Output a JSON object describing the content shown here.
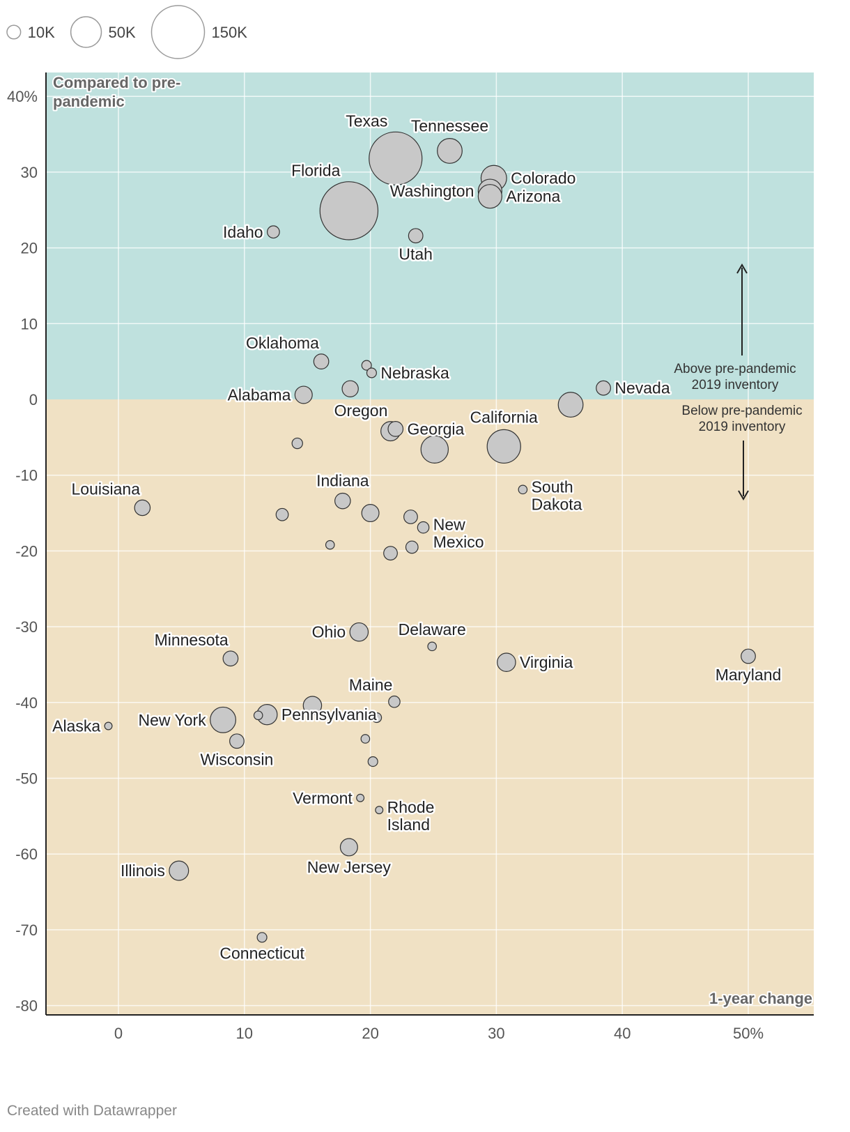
{
  "legend": {
    "items": [
      {
        "label": "10K",
        "value": 10000
      },
      {
        "label": "50K",
        "value": 50000
      },
      {
        "label": "150K",
        "value": 150000
      }
    ]
  },
  "annotations": {
    "y_corner": "Compared to pre-pandemic",
    "x_corner": "1-year change",
    "above": [
      "Above pre-pandemic",
      "2019 inventory"
    ],
    "below": [
      "Below pre-pandemic",
      "2019 inventory"
    ]
  },
  "colors": {
    "above_zone": "#bfe1de",
    "below_zone": "#f0e1c4",
    "bubble_fill": "#c8c8c8",
    "bubble_stroke": "#333333"
  },
  "credit": "Created with Datawrapper",
  "chart_data": {
    "type": "scatter",
    "title": "",
    "xlabel": "1-year change",
    "ylabel": "Compared to pre-pandemic",
    "xlim": [
      -6,
      55
    ],
    "ylim": [
      -81,
      43
    ],
    "x_ticks": [
      {
        "v": 0,
        "t": "0"
      },
      {
        "v": 10,
        "t": "10"
      },
      {
        "v": 20,
        "t": "20"
      },
      {
        "v": 30,
        "t": "30"
      },
      {
        "v": 40,
        "t": "40"
      },
      {
        "v": 50,
        "t": "50%"
      }
    ],
    "y_ticks": [
      {
        "v": 40,
        "t": "40%"
      },
      {
        "v": 30,
        "t": "30"
      },
      {
        "v": 20,
        "t": "20"
      },
      {
        "v": 10,
        "t": "10"
      },
      {
        "v": 0,
        "t": "0"
      },
      {
        "v": -10,
        "t": "-10"
      },
      {
        "v": -20,
        "t": "-20"
      },
      {
        "v": -30,
        "t": "-30"
      },
      {
        "v": -40,
        "t": "-40"
      },
      {
        "v": -50,
        "t": "-50"
      },
      {
        "v": -60,
        "t": "-60"
      },
      {
        "v": -70,
        "t": "-70"
      },
      {
        "v": -80,
        "t": "-80"
      }
    ],
    "grid": true,
    "size_legend_placement": "top-left",
    "points": [
      {
        "name": "Texas",
        "x": 22,
        "y": 31.8,
        "size": 150000,
        "label_pos": "tl"
      },
      {
        "name": "Tennessee",
        "x": 26.3,
        "y": 32.8,
        "size": 33000,
        "label_pos": "t"
      },
      {
        "name": "Florida",
        "x": 18.3,
        "y": 24.9,
        "size": 180000,
        "label_pos": "tl"
      },
      {
        "name": "Colorado",
        "x": 29.8,
        "y": 29.2,
        "size": 35000,
        "label_pos": "r"
      },
      {
        "name": "Washington",
        "x": 29.5,
        "y": 27.5,
        "size": 30000,
        "label_pos": "l"
      },
      {
        "name": "Arizona",
        "x": 29.5,
        "y": 26.8,
        "size": 30000,
        "label_pos": "r"
      },
      {
        "name": "Idaho",
        "x": 12.3,
        "y": 22.1,
        "size": 8000,
        "label_pos": "l"
      },
      {
        "name": "Utah",
        "x": 23.6,
        "y": 21.6,
        "size": 11000,
        "label_pos": "b"
      },
      {
        "name": "Oklahoma",
        "x": 16.1,
        "y": 5,
        "size": 12000,
        "label_pos": "tl"
      },
      {
        "name": "",
        "x": 19.7,
        "y": 4.5,
        "size": 5000,
        "label_pos": "none"
      },
      {
        "name": "Nebraska",
        "x": 20.1,
        "y": 3.5,
        "size": 5000,
        "label_pos": "r"
      },
      {
        "name": "",
        "x": 18.4,
        "y": 1.4,
        "size": 14000,
        "label_pos": "none"
      },
      {
        "name": "Alabama",
        "x": 14.7,
        "y": 0.6,
        "size": 16000,
        "label_pos": "l"
      },
      {
        "name": "Nevada",
        "x": 38.5,
        "y": 1.5,
        "size": 11000,
        "label_pos": "r"
      },
      {
        "name": "",
        "x": 35.9,
        "y": -0.7,
        "size": 33000,
        "label_pos": "none"
      },
      {
        "name": "Oregon",
        "x": 21.6,
        "y": -4.2,
        "size": 20000,
        "label_pos": "tl"
      },
      {
        "name": "Georgia",
        "x": 22,
        "y": -3.9,
        "size": 12000,
        "label_pos": "r"
      },
      {
        "name": "California",
        "x": 30.6,
        "y": -6.2,
        "size": 60000,
        "label_pos": "t"
      },
      {
        "name": "",
        "x": 25.1,
        "y": -6.6,
        "size": 40000,
        "label_pos": "none"
      },
      {
        "name": "",
        "x": 14.2,
        "y": -5.8,
        "size": 6000,
        "label_pos": "none"
      },
      {
        "name": "South Dakota",
        "x": 32.1,
        "y": -11.9,
        "size": 4000,
        "label_pos": "r"
      },
      {
        "name": "Louisiana",
        "x": 1.9,
        "y": -14.3,
        "size": 13000,
        "label_pos": "tl"
      },
      {
        "name": "Indiana",
        "x": 17.8,
        "y": -13.4,
        "size": 13000,
        "label_pos": "t"
      },
      {
        "name": "",
        "x": 13,
        "y": -15.2,
        "size": 8000,
        "label_pos": "none"
      },
      {
        "name": "",
        "x": 20,
        "y": -15,
        "size": 16000,
        "label_pos": "none"
      },
      {
        "name": "",
        "x": 23.2,
        "y": -15.5,
        "size": 10000,
        "label_pos": "none"
      },
      {
        "name": "New Mexico",
        "x": 24.2,
        "y": -16.9,
        "size": 7000,
        "label_pos": "r"
      },
      {
        "name": "",
        "x": 16.8,
        "y": -19.2,
        "size": 4000,
        "label_pos": "none"
      },
      {
        "name": "",
        "x": 21.6,
        "y": -20.3,
        "size": 10000,
        "label_pos": "none"
      },
      {
        "name": "",
        "x": 23.3,
        "y": -19.5,
        "size": 8000,
        "label_pos": "none"
      },
      {
        "name": "Ohio",
        "x": 19.1,
        "y": -30.7,
        "size": 18000,
        "label_pos": "l"
      },
      {
        "name": "Delaware",
        "x": 24.9,
        "y": -32.6,
        "size": 4000,
        "label_pos": "t"
      },
      {
        "name": "Minnesota",
        "x": 8.9,
        "y": -34.2,
        "size": 12000,
        "label_pos": "tl"
      },
      {
        "name": "Virginia",
        "x": 30.8,
        "y": -34.7,
        "size": 18000,
        "label_pos": "r"
      },
      {
        "name": "Maryland",
        "x": 50,
        "y": -33.9,
        "size": 11000,
        "label_pos": "b"
      },
      {
        "name": "Maine",
        "x": 21.9,
        "y": -39.9,
        "size": 7000,
        "label_pos": "tl"
      },
      {
        "name": "",
        "x": 15.4,
        "y": -40.4,
        "size": 18000,
        "label_pos": "none"
      },
      {
        "name": "",
        "x": 11.1,
        "y": -41.7,
        "size": 4000,
        "label_pos": "none"
      },
      {
        "name": "Pennsylvania",
        "x": 11.8,
        "y": -41.6,
        "size": 22000,
        "label_pos": "r"
      },
      {
        "name": "",
        "x": 20.5,
        "y": -42,
        "size": 5000,
        "label_pos": "none"
      },
      {
        "name": "New York",
        "x": 8.3,
        "y": -42.3,
        "size": 35000,
        "label_pos": "l"
      },
      {
        "name": "Alaska",
        "x": -0.8,
        "y": -43.1,
        "size": 3000,
        "label_pos": "l"
      },
      {
        "name": "Wisconsin",
        "x": 9.4,
        "y": -45.1,
        "size": 11000,
        "label_pos": "b"
      },
      {
        "name": "",
        "x": 19.6,
        "y": -44.8,
        "size": 4000,
        "label_pos": "none"
      },
      {
        "name": "",
        "x": 20.2,
        "y": -47.8,
        "size": 5000,
        "label_pos": "none"
      },
      {
        "name": "Vermont",
        "x": 19.2,
        "y": -52.6,
        "size": 3000,
        "label_pos": "l"
      },
      {
        "name": "Rhode Island",
        "x": 20.7,
        "y": -54.2,
        "size": 3000,
        "label_pos": "r"
      },
      {
        "name": "New Jersey",
        "x": 18.3,
        "y": -59.1,
        "size": 16000,
        "label_pos": "b"
      },
      {
        "name": "Illinois",
        "x": 4.8,
        "y": -62.2,
        "size": 20000,
        "label_pos": "l"
      },
      {
        "name": "Connecticut",
        "x": 11.4,
        "y": -71,
        "size": 5000,
        "label_pos": "b"
      }
    ]
  }
}
